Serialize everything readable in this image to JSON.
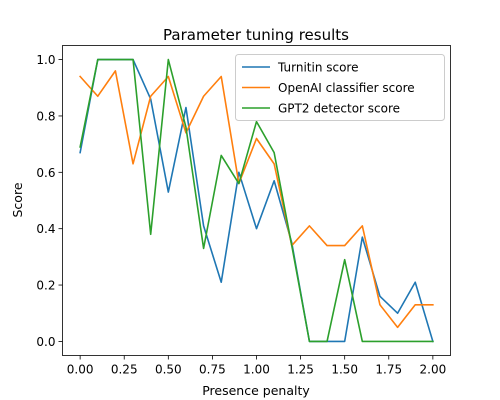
{
  "chart_data": {
    "type": "line",
    "title": "Parameter tuning results",
    "xlabel": "Presence penalty",
    "ylabel": "Score",
    "xlim": [
      -0.1,
      2.1
    ],
    "ylim": [
      -0.05,
      1.05
    ],
    "xticks": [
      0.0,
      0.25,
      0.5,
      0.75,
      1.0,
      1.25,
      1.5,
      1.75,
      2.0
    ],
    "xtick_labels": [
      "0.00",
      "0.25",
      "0.50",
      "0.75",
      "1.00",
      "1.25",
      "1.50",
      "1.75",
      "2.00"
    ],
    "yticks": [
      0.0,
      0.2,
      0.4,
      0.6,
      0.8,
      1.0
    ],
    "ytick_labels": [
      "0.0",
      "0.2",
      "0.4",
      "0.6",
      "0.8",
      "1.0"
    ],
    "grid": false,
    "legend_position": "top-right",
    "x": [
      0.0,
      0.1,
      0.2,
      0.3,
      0.4,
      0.5,
      0.6,
      0.7,
      0.8,
      0.9,
      1.0,
      1.1,
      1.2,
      1.3,
      1.4,
      1.5,
      1.6,
      1.7,
      1.8,
      1.9,
      2.0
    ],
    "series": [
      {
        "name": "Turnitin score",
        "color": "#1f77b4",
        "values": [
          0.67,
          1.0,
          1.0,
          1.0,
          0.86,
          0.53,
          0.83,
          0.41,
          0.21,
          0.6,
          0.4,
          0.57,
          0.35,
          0.0,
          0.0,
          0.0,
          0.37,
          0.16,
          0.1,
          0.21,
          0.0
        ]
      },
      {
        "name": "OpenAI classifier score",
        "color": "#ff7f0e",
        "values": [
          0.94,
          0.87,
          0.96,
          0.63,
          0.87,
          0.94,
          0.74,
          0.87,
          0.94,
          0.56,
          0.72,
          0.63,
          0.34,
          0.41,
          0.34,
          0.34,
          0.41,
          0.13,
          0.05,
          0.13,
          0.13
        ]
      },
      {
        "name": "GPT2 detector score",
        "color": "#2ca02c",
        "values": [
          0.69,
          1.0,
          1.0,
          1.0,
          0.38,
          1.0,
          0.76,
          0.33,
          0.66,
          0.56,
          0.78,
          0.67,
          0.34,
          0.0,
          0.0,
          0.29,
          0.0,
          0.0,
          0.0,
          0.0,
          0.0
        ]
      }
    ]
  }
}
